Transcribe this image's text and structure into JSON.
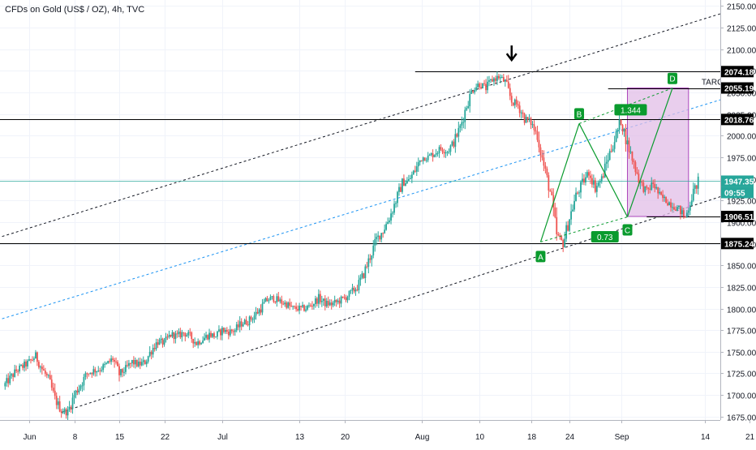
{
  "header": {
    "title": "CFDs on Gold (US$ / OZ), 4h, TVC"
  },
  "colors": {
    "up": "#26a69a",
    "down": "#ef5350",
    "pattern_green": "#0a9b2e",
    "target_fill": "#e1bee7",
    "target_stroke": "#ab47bc",
    "channel": "#131722",
    "midline": "#2196f3",
    "level_line": "#000000",
    "price_line": "#26a69a"
  },
  "chart_data": {
    "type": "candlestick",
    "title": "CFDs on Gold (US$ / OZ), 4h, TVC",
    "ylim": [
      1675,
      2150
    ],
    "y_ticks": [
      1675,
      1700,
      1725,
      1750,
      1775,
      1800,
      1825,
      1850,
      1875,
      1900,
      1925,
      1950,
      1975,
      2000,
      2025,
      2050,
      2075,
      2100,
      2125,
      2150
    ],
    "x_ticks": [
      {
        "label": "Jun",
        "day": 0
      },
      {
        "label": "8",
        "day": 7
      },
      {
        "label": "15",
        "day": 14
      },
      {
        "label": "22",
        "day": 21
      },
      {
        "label": "Jul",
        "day": 30
      },
      {
        "label": "13",
        "day": 42
      },
      {
        "label": "20",
        "day": 49
      },
      {
        "label": "Aug",
        "day": 61
      },
      {
        "label": "10",
        "day": 70
      },
      {
        "label": "18",
        "day": 78
      },
      {
        "label": "24",
        "day": 84
      },
      {
        "label": "Sep",
        "day": 92
      },
      {
        "label": "14",
        "day": 105
      },
      {
        "label": "21",
        "day": 112
      }
    ],
    "price_path": [
      [
        -4,
        1710
      ],
      [
        -2,
        1728
      ],
      [
        0,
        1738
      ],
      [
        1,
        1745
      ],
      [
        2,
        1730
      ],
      [
        3,
        1718
      ],
      [
        4,
        1695
      ],
      [
        5,
        1682
      ],
      [
        6,
        1680
      ],
      [
        7,
        1700
      ],
      [
        8,
        1712
      ],
      [
        9,
        1725
      ],
      [
        10,
        1728
      ],
      [
        11,
        1730
      ],
      [
        12,
        1735
      ],
      [
        13,
        1742
      ],
      [
        14,
        1724
      ],
      [
        15,
        1730
      ],
      [
        16,
        1738
      ],
      [
        17,
        1735
      ],
      [
        18,
        1738
      ],
      [
        19,
        1752
      ],
      [
        20,
        1762
      ],
      [
        21,
        1760
      ],
      [
        22,
        1770
      ],
      [
        23,
        1768
      ],
      [
        24,
        1772
      ],
      [
        25,
        1768
      ],
      [
        26,
        1760
      ],
      [
        27,
        1765
      ],
      [
        28,
        1770
      ],
      [
        29,
        1768
      ],
      [
        30,
        1775
      ],
      [
        31,
        1773
      ],
      [
        32,
        1775
      ],
      [
        33,
        1783
      ],
      [
        34,
        1785
      ],
      [
        35,
        1792
      ],
      [
        36,
        1800
      ],
      [
        37,
        1810
      ],
      [
        38,
        1812
      ],
      [
        39,
        1808
      ],
      [
        40,
        1805
      ],
      [
        41,
        1800
      ],
      [
        42,
        1800
      ],
      [
        43,
        1800
      ],
      [
        44,
        1805
      ],
      [
        45,
        1812
      ],
      [
        46,
        1806
      ],
      [
        47,
        1805
      ],
      [
        48,
        1808
      ],
      [
        49,
        1812
      ],
      [
        50,
        1818
      ],
      [
        51,
        1825
      ],
      [
        52,
        1840
      ],
      [
        53,
        1860
      ],
      [
        54,
        1880
      ],
      [
        55,
        1890
      ],
      [
        56,
        1905
      ],
      [
        57,
        1925
      ],
      [
        58,
        1945
      ],
      [
        59,
        1948
      ],
      [
        60,
        1960
      ],
      [
        61,
        1975
      ],
      [
        62,
        1975
      ],
      [
        63,
        1980
      ],
      [
        64,
        1985
      ],
      [
        65,
        1982
      ],
      [
        66,
        1992
      ],
      [
        67,
        2010
      ],
      [
        68,
        2035
      ],
      [
        69,
        2055
      ],
      [
        70,
        2060
      ],
      [
        71,
        2055
      ],
      [
        72,
        2065
      ],
      [
        73,
        2068
      ],
      [
        74,
        2062
      ],
      [
        75,
        2040
      ],
      [
        76,
        2035
      ],
      [
        77,
        2020
      ],
      [
        78,
        2015
      ],
      [
        79,
        2000
      ],
      [
        80,
        1965
      ],
      [
        81,
        1935
      ],
      [
        82,
        1885
      ],
      [
        83,
        1875
      ],
      [
        84,
        1905
      ],
      [
        85,
        1930
      ],
      [
        86,
        1945
      ],
      [
        87,
        1958
      ],
      [
        88,
        1940
      ],
      [
        89,
        1950
      ],
      [
        90,
        1975
      ],
      [
        91,
        1995
      ],
      [
        92,
        2018
      ],
      [
        93,
        1990
      ],
      [
        94,
        1968
      ],
      [
        95,
        1945
      ],
      [
        96,
        1935
      ],
      [
        97,
        1945
      ],
      [
        98,
        1930
      ],
      [
        99,
        1925
      ],
      [
        100,
        1920
      ],
      [
        101,
        1915
      ],
      [
        102,
        1905
      ],
      [
        103,
        1930
      ],
      [
        104,
        1947.35
      ]
    ],
    "levels": [
      {
        "label": "2074.18",
        "value": 2074.18,
        "line_start_day": 60
      },
      {
        "label": "2055.19",
        "value": 2055.19,
        "line_start_day": 90
      },
      {
        "label": "2018.76",
        "value": 2018.76,
        "line_start_day": -10
      },
      {
        "label": "1906.51",
        "value": 1906.51,
        "line_start_day": 96
      },
      {
        "label": "1875.24",
        "value": 1875.24,
        "line_start_day": -10
      }
    ],
    "current_price": {
      "label": "1947.35",
      "value": 1947.35,
      "countdown": "09:55"
    },
    "channel": {
      "upper": [
        [
          -10,
          1870
        ],
        [
          120,
          2170
        ]
      ],
      "lower": [
        [
          5,
          1680
        ],
        [
          120,
          1960
        ]
      ],
      "middle": [
        [
          -10,
          1775
        ],
        [
          120,
          2070
        ]
      ]
    },
    "pattern": {
      "points": [
        {
          "label": "A",
          "day": 79.5,
          "value": 1877
        },
        {
          "label": "B",
          "day": 85.5,
          "value": 2014
        },
        {
          "label": "C",
          "day": 93,
          "value": 1906
        },
        {
          "label": "D",
          "day": 100,
          "value": 2055
        }
      ],
      "ratios": [
        {
          "label": "0.73",
          "day": 89.5,
          "value": 1883
        },
        {
          "label": "1.344",
          "day": 93.5,
          "value": 2030
        }
      ]
    },
    "target_zone": {
      "day_from": 93,
      "day_to": 102.5,
      "value_from": 1906.51,
      "value_to": 2055.19
    },
    "target_label": "TARGET",
    "arrow_marker": {
      "day": 75,
      "value": 2095
    }
  }
}
